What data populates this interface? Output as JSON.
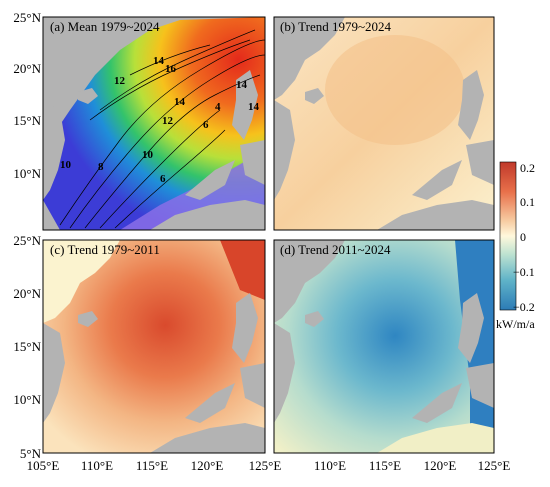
{
  "panels": [
    {
      "id": "a",
      "title": "(a) Mean 1979~2024"
    },
    {
      "id": "b",
      "title": "(b) Trend 1979~2024"
    },
    {
      "id": "c",
      "title": "(c) Trend 1979~2011"
    },
    {
      "id": "d",
      "title": "(d) Trend 2011~2024"
    }
  ],
  "axes": {
    "lat_ticks": [
      "25°N",
      "20°N",
      "15°N",
      "10°N",
      "5°N"
    ],
    "lon_ticks": [
      "105°E",
      "110°E",
      "115°E",
      "120°E",
      "125°E"
    ]
  },
  "contour_labels_a": [
    "14",
    "16",
    "12",
    "14",
    "12",
    "10",
    "10",
    "8",
    "6",
    "14",
    "4",
    "6",
    "14"
  ],
  "colorbar": {
    "ticks": [
      "0.2",
      "0.1",
      "0",
      "−0.1",
      "−0.2"
    ],
    "unit": "kW/m/a",
    "colors_top_to_bottom": [
      "#c0392b",
      "#e67e22",
      "#f5c89a",
      "#fff8dc",
      "#a8d8d0",
      "#5fb3c8",
      "#2c7bb6"
    ]
  },
  "colors": {
    "land": "#b3b3b3",
    "mean_high": "#e53b20",
    "mean_low": "#3d3bd6",
    "trend_pos": "#e5583a",
    "trend_neg": "#3a8cc2"
  }
}
